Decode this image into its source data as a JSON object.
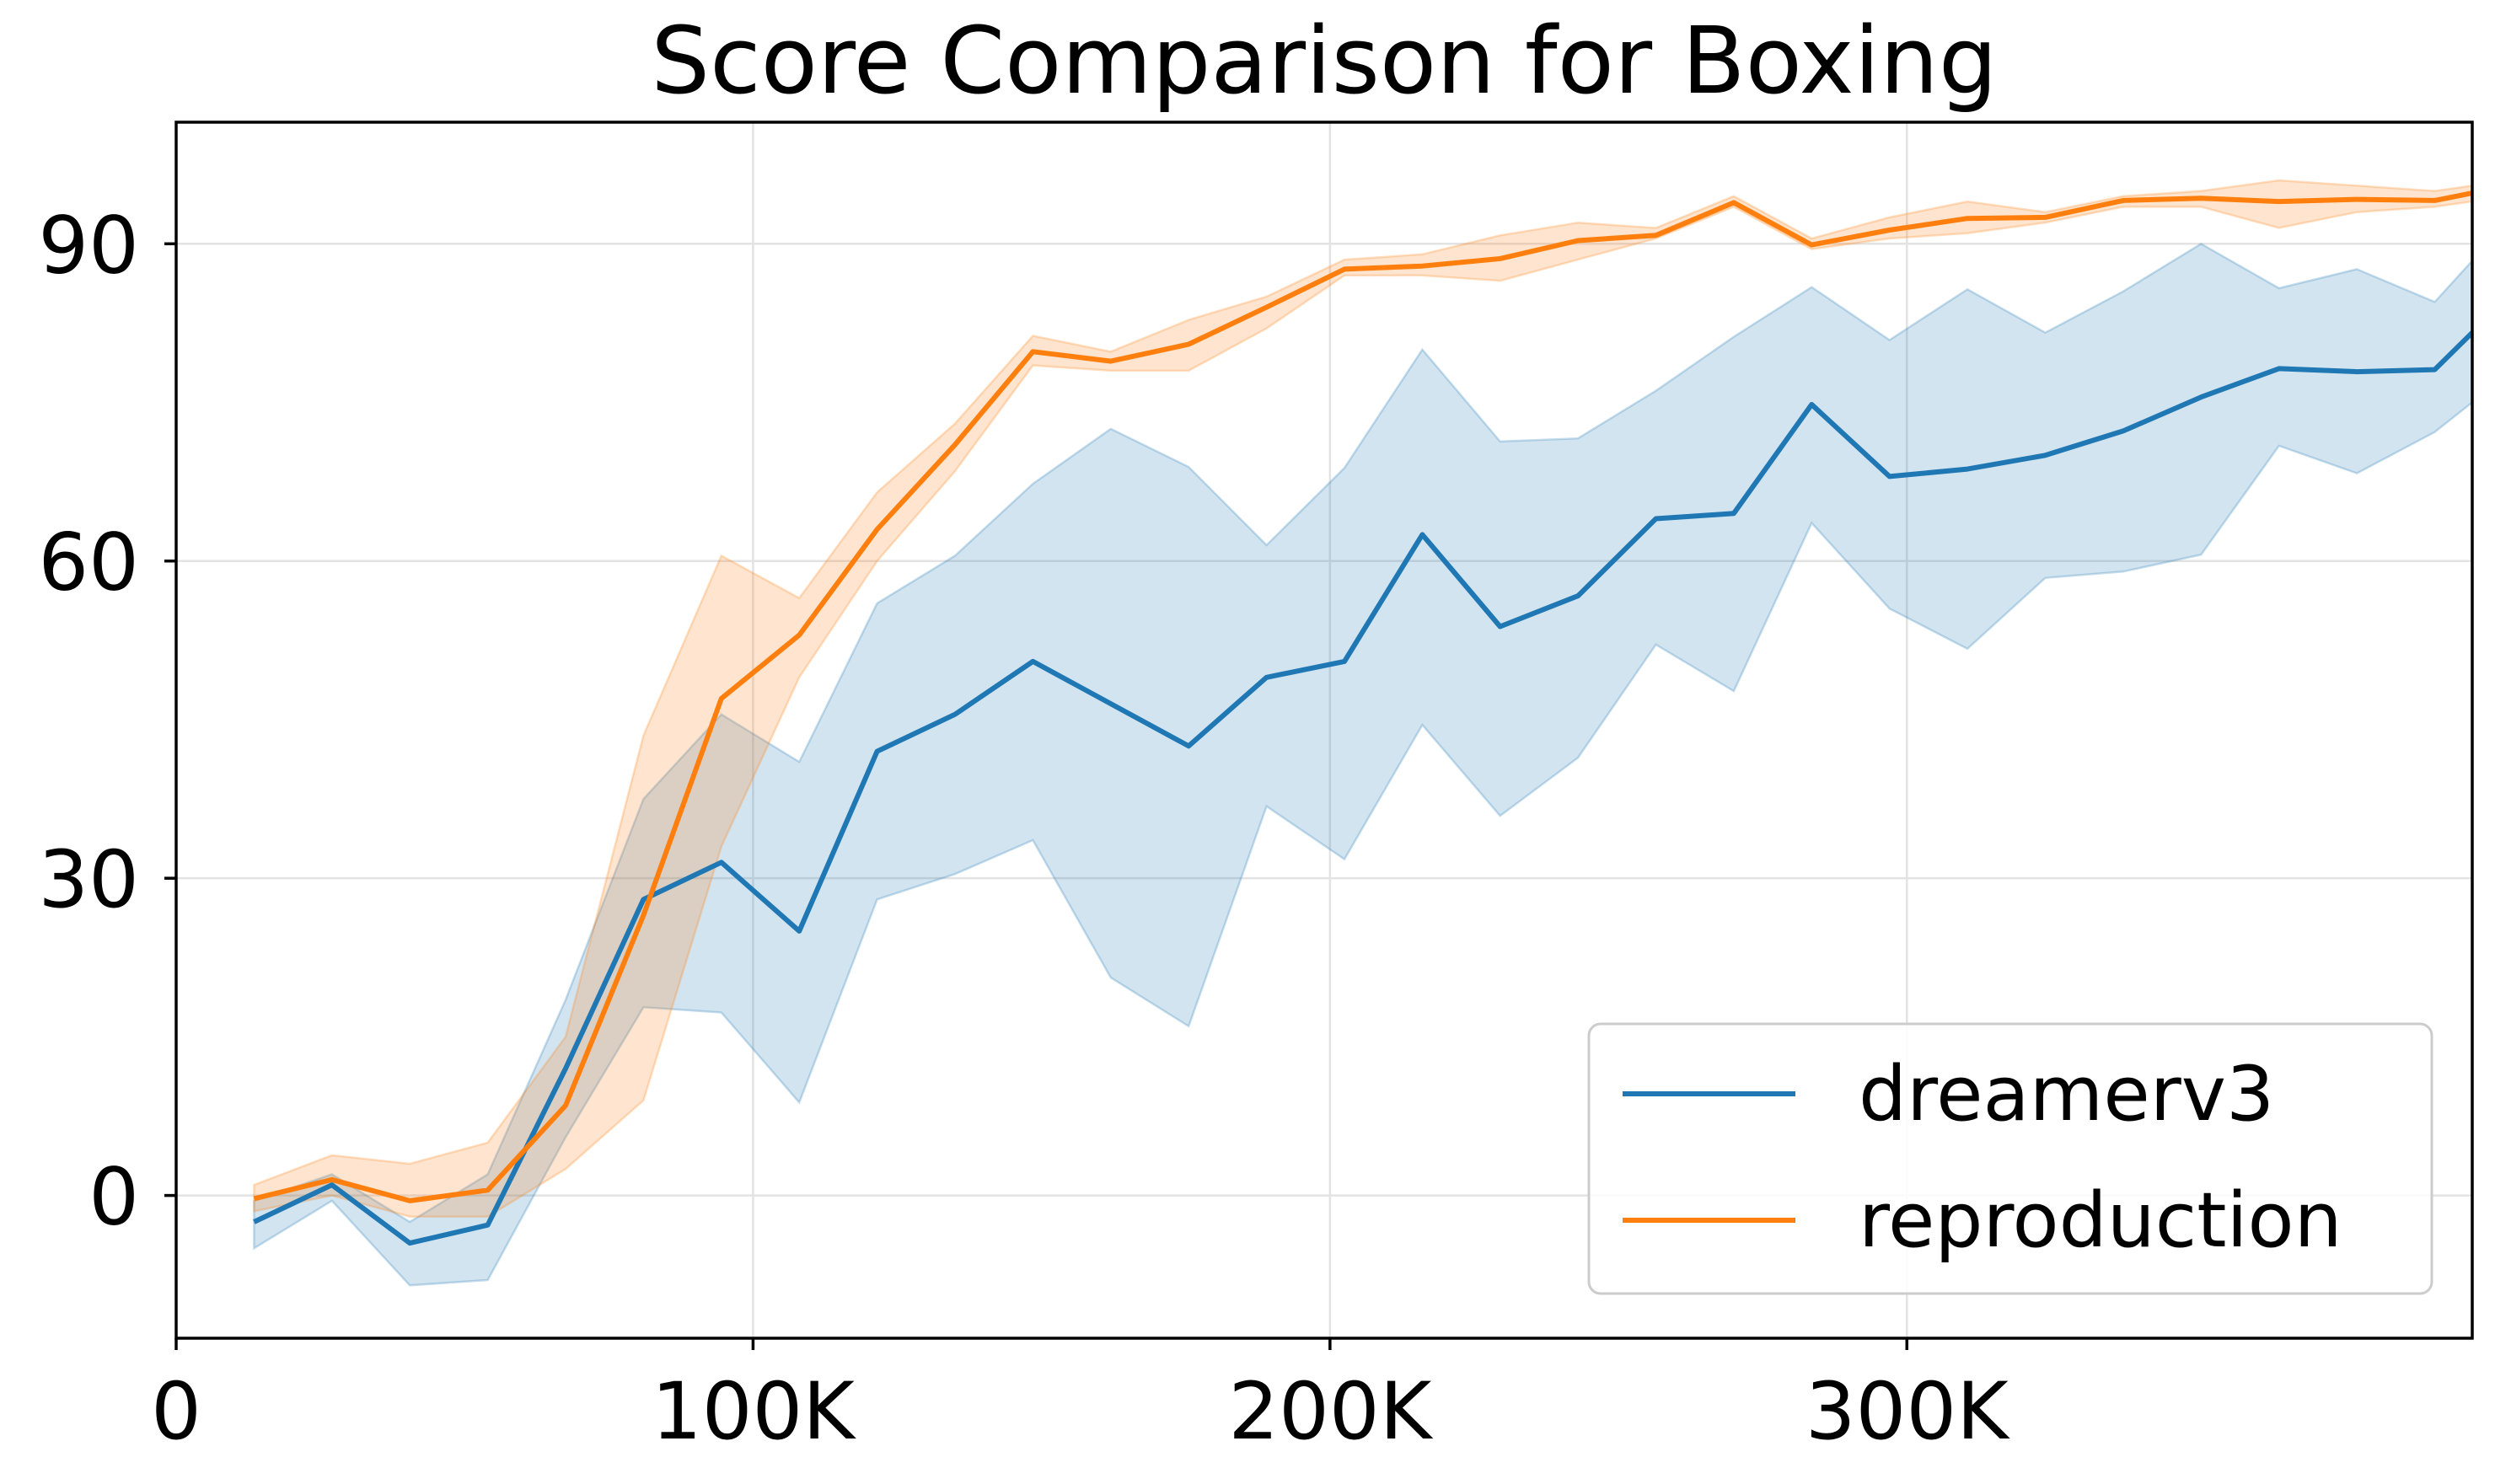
{
  "chart_data": {
    "type": "line",
    "title": "Score Comparison for Boxing",
    "xlabel": "",
    "ylabel": "",
    "xlim": [
      0,
      398000
    ],
    "ylim": [
      -13.5,
      101.5
    ],
    "xticks": [
      0,
      100000,
      200000,
      300000
    ],
    "xtick_labels": [
      "0",
      "100K",
      "200K",
      "300K"
    ],
    "yticks": [
      0,
      30,
      60,
      90
    ],
    "ytick_labels": [
      "0",
      "30",
      "60",
      "90"
    ],
    "grid": true,
    "legend_position": "lower-right",
    "x": [
      13500,
      27000,
      40500,
      54000,
      67500,
      81000,
      94500,
      108000,
      121500,
      135000,
      148500,
      162000,
      175500,
      189000,
      202500,
      216000,
      229500,
      243000,
      256500,
      270000,
      283500,
      297000,
      310500,
      324000,
      337500,
      351000,
      364500,
      378000,
      391500,
      398000
    ],
    "series": [
      {
        "name": "dreamerv3",
        "color": "#1f77b4",
        "values": [
          -2.5,
          1.0,
          -4.5,
          -2.8,
          12.0,
          28.0,
          31.5,
          25.0,
          42.0,
          45.5,
          50.5,
          46.5,
          42.5,
          49.0,
          50.5,
          62.5,
          53.8,
          56.7,
          64.0,
          64.5,
          74.8,
          68.0,
          68.7,
          70.0,
          72.3,
          75.5,
          78.2,
          77.9,
          78.1,
          81.6
        ],
        "lower": [
          -5.0,
          -0.5,
          -8.5,
          -8.0,
          5.5,
          17.8,
          17.3,
          8.8,
          28.0,
          30.4,
          33.6,
          20.6,
          16.0,
          36.8,
          31.8,
          44.5,
          35.9,
          41.4,
          52.1,
          47.7,
          63.6,
          55.5,
          51.7,
          58.4,
          59.0,
          60.6,
          70.9,
          68.3,
          72.2,
          75.0
        ],
        "upper": [
          -0.5,
          2.0,
          -2.5,
          2.0,
          18.5,
          37.5,
          45.5,
          41.0,
          56.0,
          60.5,
          67.3,
          72.5,
          68.9,
          61.5,
          68.8,
          80.0,
          71.3,
          71.6,
          76.1,
          81.2,
          85.9,
          80.9,
          85.7,
          81.6,
          85.5,
          90.0,
          85.8,
          87.6,
          84.5,
          88.4
        ]
      },
      {
        "name": "reproduction",
        "color": "#ff7f0e",
        "values": [
          -0.3,
          1.5,
          -0.5,
          0.5,
          8.5,
          26.5,
          47.0,
          53.0,
          63.0,
          71.0,
          79.8,
          78.9,
          80.5,
          84.0,
          87.6,
          87.9,
          88.6,
          90.3,
          90.8,
          93.9,
          89.9,
          91.3,
          92.4,
          92.5,
          94.1,
          94.3,
          94.0,
          94.2,
          94.1,
          94.8
        ],
        "lower": [
          -1.5,
          0.0,
          -2.0,
          -2.0,
          2.5,
          9.0,
          33.0,
          49.0,
          60.0,
          68.5,
          78.5,
          78.0,
          78.0,
          82.0,
          87.0,
          87.0,
          86.5,
          88.5,
          90.5,
          93.5,
          89.5,
          90.5,
          91.0,
          92.0,
          93.5,
          93.5,
          91.5,
          93.0,
          93.5,
          94.0
        ],
        "upper": [
          1.0,
          3.8,
          3.0,
          5.0,
          15.0,
          43.5,
          60.5,
          56.5,
          66.5,
          73.0,
          81.3,
          79.8,
          82.8,
          85.0,
          88.5,
          89.0,
          90.8,
          92.0,
          91.5,
          94.5,
          90.5,
          92.5,
          94.0,
          93.0,
          94.5,
          95.0,
          96.0,
          95.5,
          95.0,
          95.5
        ]
      }
    ]
  }
}
